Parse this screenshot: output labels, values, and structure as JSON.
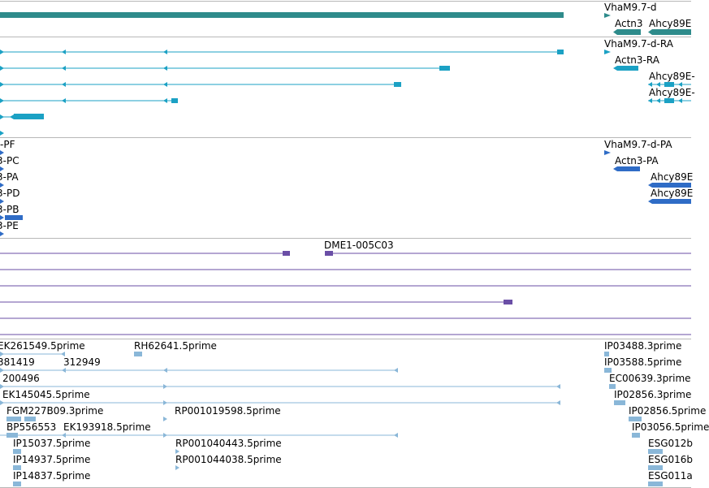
{
  "colors": {
    "gene": "#2e8b8b",
    "mrna": "#1ba1c4",
    "cds": "#2f6cc6",
    "clone": "#6a4ea6",
    "est": "#8ab7d8",
    "divider": "#b8b8b8"
  },
  "tracks": {
    "gene": {
      "labels": [
        "VhaM9.7-d",
        "Actn3",
        "Ahcy89E"
      ]
    },
    "mrna": {
      "labels": [
        "VhaM9.7-d-RA",
        "Actn3-RA",
        "Ahcy89E-",
        "Ahcy89E-"
      ]
    },
    "cds": {
      "labels": [
        "-PF",
        "3-PC",
        "3-PA",
        "3-PD",
        "3-PB",
        "3-PE",
        "VhaM9.7-d-PA",
        "Actn3-PA",
        "Ahcy89E",
        "Ahcy89E"
      ]
    },
    "clone": {
      "labels": [
        "DME1-005C03"
      ]
    },
    "est": {
      "labels": [
        "EK261549.5prime",
        "RH62641.5prime",
        "IP03488.3prime",
        "381419",
        "312949",
        "IP03588.5prime",
        "200496",
        "EC00639.3prime",
        "EK145045.5prime",
        "IP02856.3prime",
        "FGM227B09.3prime",
        "RP001019598.5prime",
        "IP02856.5prime",
        "BP556553",
        "EK193918.5prime",
        "IP03056.5prime",
        "IP15037.5prime",
        "RP001040443.5prime",
        "ESG012b",
        "IP14937.5prime",
        "RP001044038.5prime",
        "ESG016b",
        "IP14837.5prime",
        "ESG011a"
      ]
    }
  }
}
